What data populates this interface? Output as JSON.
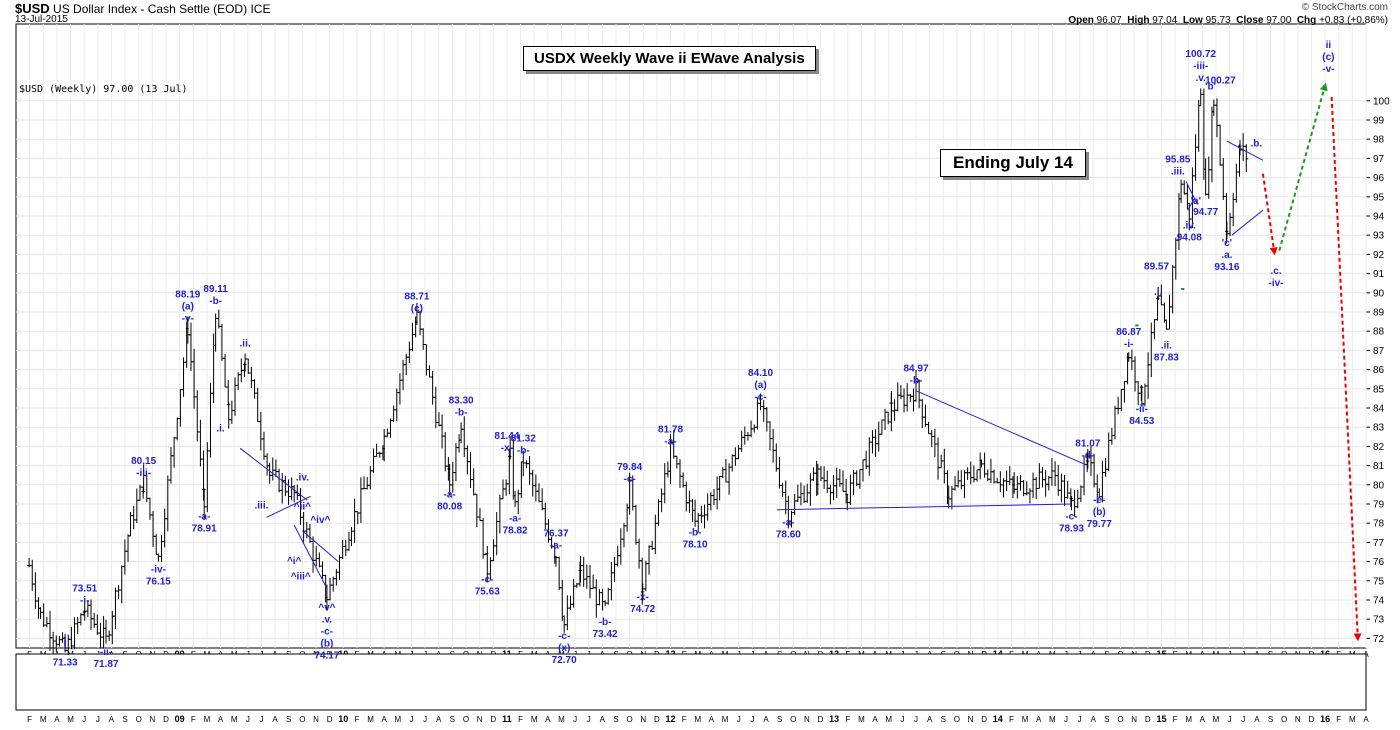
{
  "header": {
    "symbol": "$USD",
    "name": "US Dollar Index - Cash Settle (EOD)",
    "exchange": "ICE",
    "date": "13-Jul-2015",
    "copyright": "© StockCharts.com",
    "open_label": "Open",
    "open": "96.07",
    "high_label": "High",
    "high": "97.04",
    "low_label": "Low",
    "low": "95.73",
    "close_label": "Close",
    "close": "97.00",
    "chg_label": "Chg",
    "chg": "+0.83 (+0.86%)",
    "legend": "$USD (Weekly) 97.00 (13 Jul)"
  },
  "title_box": "USDX Weekly Wave ii EWave Analysis",
  "ending_box": "Ending July 14",
  "chart_data": {
    "type": "bar",
    "title": "USDX Weekly Wave ii EWave Analysis",
    "ylim": [
      71.5,
      104
    ],
    "y_ticks": [
      72,
      73,
      74,
      75,
      76,
      77,
      78,
      79,
      80,
      81,
      82,
      83,
      84,
      85,
      86,
      87,
      88,
      89,
      90,
      91,
      92,
      93,
      94,
      95,
      96,
      97,
      98,
      99,
      100
    ],
    "x_tick_labels": [
      "F",
      "M",
      "A",
      "M",
      "J",
      "J",
      "A",
      "S",
      "O",
      "N",
      "D",
      "09",
      "F",
      "M",
      "A",
      "M",
      "J",
      "J",
      "A",
      "S",
      "O",
      "N",
      "D",
      "10",
      "F",
      "M",
      "A",
      "M",
      "J",
      "J",
      "A",
      "S",
      "O",
      "N",
      "D",
      "11",
      "F",
      "M",
      "A",
      "M",
      "J",
      "J",
      "A",
      "S",
      "O",
      "N",
      "D",
      "12",
      "F",
      "M",
      "A",
      "M",
      "J",
      "J",
      "A",
      "S",
      "O",
      "N",
      "D",
      "13",
      "F",
      "M",
      "A",
      "M",
      "J",
      "J",
      "A",
      "S",
      "O",
      "N",
      "D",
      "14",
      "F",
      "M",
      "A",
      "M",
      "J",
      "J",
      "A",
      "S",
      "O",
      "N",
      "D",
      "15",
      "F",
      "M",
      "A",
      "M",
      "J",
      "J",
      "A",
      "S",
      "O",
      "N",
      "D",
      "16",
      "F",
      "M",
      "A"
    ],
    "anchors": [
      [
        2008.08,
        75.8
      ],
      [
        2008.15,
        73.2
      ],
      [
        2008.3,
        71.33
      ],
      [
        2008.42,
        73.51
      ],
      [
        2008.55,
        71.87
      ],
      [
        2008.7,
        78.0
      ],
      [
        2008.78,
        80.15
      ],
      [
        2008.87,
        76.15
      ],
      [
        2009.05,
        88.19
      ],
      [
        2009.15,
        78.91
      ],
      [
        2009.22,
        89.11
      ],
      [
        2009.3,
        83.5
      ],
      [
        2009.4,
        86.8
      ],
      [
        2009.55,
        80.5
      ],
      [
        2009.7,
        79.5
      ],
      [
        2009.9,
        74.17
      ],
      [
        2010.05,
        78.0
      ],
      [
        2010.25,
        82.5
      ],
      [
        2010.45,
        88.71
      ],
      [
        2010.65,
        80.08
      ],
      [
        2010.72,
        83.3
      ],
      [
        2010.88,
        75.63
      ],
      [
        2011.02,
        81.44
      ],
      [
        2011.05,
        78.82
      ],
      [
        2011.1,
        81.32
      ],
      [
        2011.3,
        76.37
      ],
      [
        2011.35,
        72.7
      ],
      [
        2011.45,
        75.5
      ],
      [
        2011.6,
        73.42
      ],
      [
        2011.75,
        79.84
      ],
      [
        2011.83,
        74.72
      ],
      [
        2012.0,
        81.78
      ],
      [
        2012.15,
        78.1
      ],
      [
        2012.3,
        80.0
      ],
      [
        2012.55,
        84.1
      ],
      [
        2012.72,
        78.6
      ],
      [
        2012.9,
        80.5
      ],
      [
        2013.08,
        79.5
      ],
      [
        2013.35,
        84.0
      ],
      [
        2013.5,
        84.97
      ],
      [
        2013.7,
        79.5
      ],
      [
        2013.9,
        81.0
      ],
      [
        2014.1,
        79.8
      ],
      [
        2014.35,
        80.5
      ],
      [
        2014.45,
        78.93
      ],
      [
        2014.55,
        81.07
      ],
      [
        2014.62,
        79.77
      ],
      [
        2014.8,
        86.87
      ],
      [
        2014.88,
        84.53
      ],
      [
        2014.98,
        89.57
      ],
      [
        2015.03,
        87.83
      ],
      [
        2015.12,
        95.85
      ],
      [
        2015.17,
        94.08
      ],
      [
        2015.24,
        100.72
      ],
      [
        2015.27,
        94.77
      ],
      [
        2015.32,
        100.27
      ],
      [
        2015.4,
        93.16
      ],
      [
        2015.48,
        97.5
      ],
      [
        2015.53,
        97.0
      ]
    ],
    "wave_labels": [
      {
        "x": 2008.3,
        "y": 71.33,
        "text": "71.33",
        "pos": "below"
      },
      {
        "x": 2008.3,
        "y": 71.9,
        "text": "i",
        "pos": "big"
      },
      {
        "x": 2008.42,
        "y": 73.51,
        "text": "73.51\n-i-",
        "pos": "above"
      },
      {
        "x": 2008.55,
        "y": 71.87,
        "text": "-ii-\n71.87",
        "pos": "below"
      },
      {
        "x": 2008.78,
        "y": 80.15,
        "text": "80.15\n-iii-",
        "pos": "above"
      },
      {
        "x": 2008.87,
        "y": 76.15,
        "text": "-iv-\n76.15",
        "pos": "below"
      },
      {
        "x": 2009.05,
        "y": 88.19,
        "text": "88.19\n(a)\n-v-",
        "pos": "above"
      },
      {
        "x": 2009.15,
        "y": 78.91,
        "text": "-a-\n78.91",
        "pos": "below"
      },
      {
        "x": 2009.22,
        "y": 89.11,
        "text": "89.11\n-b-",
        "pos": "above"
      },
      {
        "x": 2009.25,
        "y": 83.5,
        "text": ".i.",
        "pos": "below"
      },
      {
        "x": 2009.4,
        "y": 86.9,
        "text": ".ii.",
        "pos": "above"
      },
      {
        "x": 2009.5,
        "y": 79.5,
        "text": ".iii.",
        "pos": "below"
      },
      {
        "x": 2009.75,
        "y": 79.9,
        "text": ".iv.",
        "pos": "above"
      },
      {
        "x": 2009.75,
        "y": 78.4,
        "text": "^ii^",
        "pos": "above"
      },
      {
        "x": 2009.86,
        "y": 77.7,
        "text": "^iv^",
        "pos": "above"
      },
      {
        "x": 2009.7,
        "y": 76.6,
        "text": "^i^",
        "pos": "below"
      },
      {
        "x": 2009.74,
        "y": 75.8,
        "text": "^iii^",
        "pos": "below"
      },
      {
        "x": 2009.9,
        "y": 74.17,
        "text": "^v^\n.v.\n-c-\n(b)\n74.17",
        "pos": "below"
      },
      {
        "x": 2010.45,
        "y": 88.71,
        "text": "88.71\n(c)",
        "pos": "above"
      },
      {
        "x": 2010.65,
        "y": 80.08,
        "text": "-a-\n80.08",
        "pos": "below"
      },
      {
        "x": 2010.72,
        "y": 83.3,
        "text": "83.30\n-b-",
        "pos": "above"
      },
      {
        "x": 2010.88,
        "y": 75.63,
        "text": "-c-\n75.63",
        "pos": "below"
      },
      {
        "x": 2011.0,
        "y": 81.44,
        "text": "81.44\n-x-",
        "pos": "above"
      },
      {
        "x": 2011.05,
        "y": 78.82,
        "text": "-a-\n78.82",
        "pos": "below"
      },
      {
        "x": 2011.1,
        "y": 81.32,
        "text": "81.32\n-b-",
        "pos": "above"
      },
      {
        "x": 2011.3,
        "y": 76.37,
        "text": "76.37\n-a-",
        "pos": "above"
      },
      {
        "x": 2011.35,
        "y": 72.7,
        "text": "-c-\n(x)\n72.70",
        "pos": "below"
      },
      {
        "x": 2011.6,
        "y": 73.42,
        "text": "-b-\n73.42",
        "pos": "below"
      },
      {
        "x": 2011.75,
        "y": 79.84,
        "text": "79.84\n-c-",
        "pos": "above"
      },
      {
        "x": 2011.83,
        "y": 74.72,
        "text": "-x-\n74.72",
        "pos": "below"
      },
      {
        "x": 2012.0,
        "y": 81.78,
        "text": "81.78\n-a-",
        "pos": "above"
      },
      {
        "x": 2012.15,
        "y": 78.1,
        "text": "-b-\n78.10",
        "pos": "below"
      },
      {
        "x": 2012.55,
        "y": 84.1,
        "text": "84.10\n(a)\n-c-",
        "pos": "above"
      },
      {
        "x": 2012.72,
        "y": 78.6,
        "text": "-a-\n78.60",
        "pos": "below"
      },
      {
        "x": 2013.5,
        "y": 84.97,
        "text": "84.97\n-b-",
        "pos": "above"
      },
      {
        "x": 2014.45,
        "y": 78.93,
        "text": "-c-\n78.93",
        "pos": "below"
      },
      {
        "x": 2014.55,
        "y": 81.07,
        "text": "81.07\n-d-",
        "pos": "above"
      },
      {
        "x": 2014.62,
        "y": 79.77,
        "text": "-e-\n(b)\n79.77",
        "pos": "below"
      },
      {
        "x": 2014.8,
        "y": 86.87,
        "text": "86.87\n-i-",
        "pos": "above"
      },
      {
        "x": 2014.88,
        "y": 84.53,
        "text": "-ii-\n84.53",
        "pos": "below"
      },
      {
        "x": 2014.98,
        "y": 89.57,
        "text": ".i.",
        "pos": "above"
      },
      {
        "x": 2014.97,
        "y": 90.9,
        "text": "89.57",
        "pos": "above"
      },
      {
        "x": 2015.03,
        "y": 87.83,
        "text": ".ii.\n87.83",
        "pos": "below"
      },
      {
        "x": 2015.1,
        "y": 95.85,
        "text": "95.85\n.iii.",
        "pos": "above"
      },
      {
        "x": 2015.17,
        "y": 94.08,
        "text": ".iv.\n94.08",
        "pos": "below"
      },
      {
        "x": 2015.21,
        "y": 94.3,
        "text": "'a'",
        "pos": "above"
      },
      {
        "x": 2015.24,
        "y": 100.72,
        "text": "100.72\n-iii-\n.v.",
        "pos": "above"
      },
      {
        "x": 2015.27,
        "y": 94.77,
        "text": "94.77",
        "pos": "below"
      },
      {
        "x": 2015.3,
        "y": 100.27,
        "text": "'b'",
        "pos": "above"
      },
      {
        "x": 2015.36,
        "y": 100.6,
        "text": "100.27",
        "pos": "above"
      },
      {
        "x": 2015.4,
        "y": 93.16,
        "text": "'c'\n.a.\n93.16",
        "pos": "below"
      },
      {
        "x": 2015.58,
        "y": 97.3,
        "text": ".b.",
        "pos": "above"
      },
      {
        "x": 2015.7,
        "y": 91.7,
        "text": ".c.\n-iv-",
        "pos": "below"
      },
      {
        "x": 2016.02,
        "y": 101.2,
        "text": "ii\n(c)\n-v-",
        "pos": "above"
      }
    ]
  }
}
